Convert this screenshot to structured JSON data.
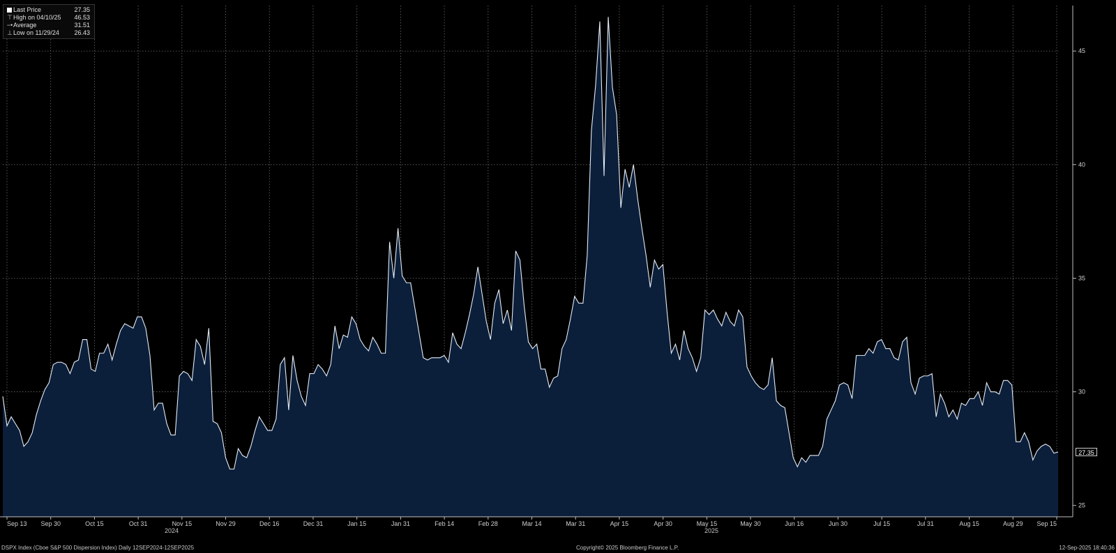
{
  "legend": [
    {
      "mark": "swatch",
      "label": "Last Price",
      "value": "27.35"
    },
    {
      "mark": "high",
      "label": "High on 04/10/25",
      "value": "46.53"
    },
    {
      "mark": "avg",
      "label": "Average",
      "value": "31.51"
    },
    {
      "mark": "low",
      "label": "Low on 11/29/24",
      "value": "26.43"
    }
  ],
  "last_price_label": "27.35",
  "years": {
    "y2024": "2024",
    "y2025": "2025"
  },
  "footer": {
    "left": "DSPX Index (Cboe S&P 500 Dispersion Index)  Daily 12SEP2024-12SEP2025",
    "center": "Copyright© 2025 Bloomberg Finance L.P.",
    "right": "12-Sep-2025 18:40:36"
  },
  "colors": {
    "background": "#000000",
    "area_fill": "#0b1f3b",
    "line": "#e6ecf5",
    "grid": "#6e6e6e"
  },
  "chart_data": {
    "type": "area",
    "title": "",
    "xlabel": "",
    "ylabel": "",
    "ylim": [
      24.5,
      47
    ],
    "grid": true,
    "legend_position": "top-left",
    "y_ticks": [
      "25",
      "30",
      "35",
      "40",
      "45"
    ],
    "x_ticks": [
      "Sep 13",
      "Sep 30",
      "Oct 15",
      "Oct 31",
      "Nov 15",
      "Nov 29",
      "Dec 16",
      "Dec 31",
      "Jan 15",
      "Jan 31",
      "Feb 14",
      "Feb 28",
      "Mar 14",
      "Mar 31",
      "Apr 15",
      "Apr 30",
      "May 15",
      "May 30",
      "Jun 16",
      "Jun 30",
      "Jul 15",
      "Jul 31",
      "Aug 15",
      "Aug 29",
      "Sep 15"
    ],
    "series": [
      {
        "values": [
          29.8,
          28.5,
          28.9,
          28.6,
          28.3,
          27.6,
          27.8,
          28.2,
          29.0,
          29.6,
          30.1,
          30.4,
          31.2,
          31.3,
          31.3,
          31.2,
          30.8,
          31.3,
          31.4,
          32.3,
          32.3,
          31.0,
          30.9,
          31.7,
          31.7,
          32.1,
          31.4,
          32.1,
          32.7,
          33.0,
          32.9,
          32.8,
          33.3,
          33.3,
          32.8,
          31.6,
          29.2,
          29.5,
          29.5,
          28.6,
          28.1,
          28.1,
          30.7,
          30.9,
          30.8,
          30.5,
          32.3,
          32.0,
          31.2,
          32.8,
          28.7,
          28.6,
          28.2,
          27.1,
          26.6,
          26.6,
          27.5,
          27.2,
          27.1,
          27.6,
          28.3,
          28.9,
          28.6,
          28.3,
          28.3,
          28.8,
          31.2,
          31.5,
          29.2,
          31.6,
          30.5,
          29.8,
          29.4,
          30.8,
          30.8,
          31.2,
          31.0,
          30.7,
          31.2,
          32.9,
          31.9,
          32.5,
          32.4,
          33.3,
          33.0,
          32.3,
          32.0,
          31.8,
          32.4,
          32.1,
          31.7,
          31.7,
          36.6,
          35.0,
          37.2,
          35.1,
          34.8,
          34.8,
          33.7,
          32.6,
          31.5,
          31.4,
          31.5,
          31.5,
          31.5,
          31.6,
          31.3,
          32.6,
          32.1,
          31.9,
          32.6,
          33.4,
          34.3,
          35.5,
          34.3,
          33.1,
          32.3,
          33.9,
          34.5,
          33.0,
          33.6,
          32.7,
          36.2,
          35.8,
          33.8,
          32.2,
          31.9,
          32.1,
          31.0,
          31.0,
          30.2,
          30.6,
          30.7,
          31.9,
          32.3,
          33.2,
          34.2,
          33.9,
          33.9,
          36.0,
          41.5,
          43.5,
          46.3,
          39.5,
          46.5,
          43.4,
          42.2,
          38.1,
          39.8,
          39.0,
          40.0,
          38.5,
          37.2,
          36.0,
          34.6,
          35.8,
          35.4,
          35.6,
          33.5,
          31.7,
          32.1,
          31.4,
          32.7,
          31.9,
          31.5,
          30.9,
          31.5,
          33.6,
          33.4,
          33.6,
          33.2,
          32.9,
          33.5,
          33.1,
          32.9,
          33.6,
          33.3,
          31.1,
          30.7,
          30.4,
          30.2,
          30.1,
          30.3,
          31.5,
          29.6,
          29.4,
          29.3,
          28.2,
          27.1,
          26.7,
          27.1,
          26.9,
          27.2,
          27.2,
          27.2,
          27.6,
          28.8,
          29.2,
          29.6,
          30.3,
          30.4,
          30.3,
          29.7,
          31.6,
          31.6,
          31.6,
          31.9,
          31.7,
          32.2,
          32.3,
          31.9,
          31.9,
          31.5,
          31.4,
          32.2,
          32.4,
          30.4,
          29.9,
          30.6,
          30.7,
          30.7,
          30.8,
          28.9,
          29.9,
          29.5,
          28.9,
          29.2,
          28.8,
          29.5,
          29.4,
          29.7,
          29.7,
          30.0,
          29.4,
          30.4,
          30.0,
          30.0,
          29.9,
          30.5,
          30.5,
          30.3,
          27.8,
          27.8,
          28.2,
          27.8,
          27.0,
          27.4,
          27.6,
          27.7,
          27.6,
          27.3,
          27.35
        ]
      }
    ]
  }
}
